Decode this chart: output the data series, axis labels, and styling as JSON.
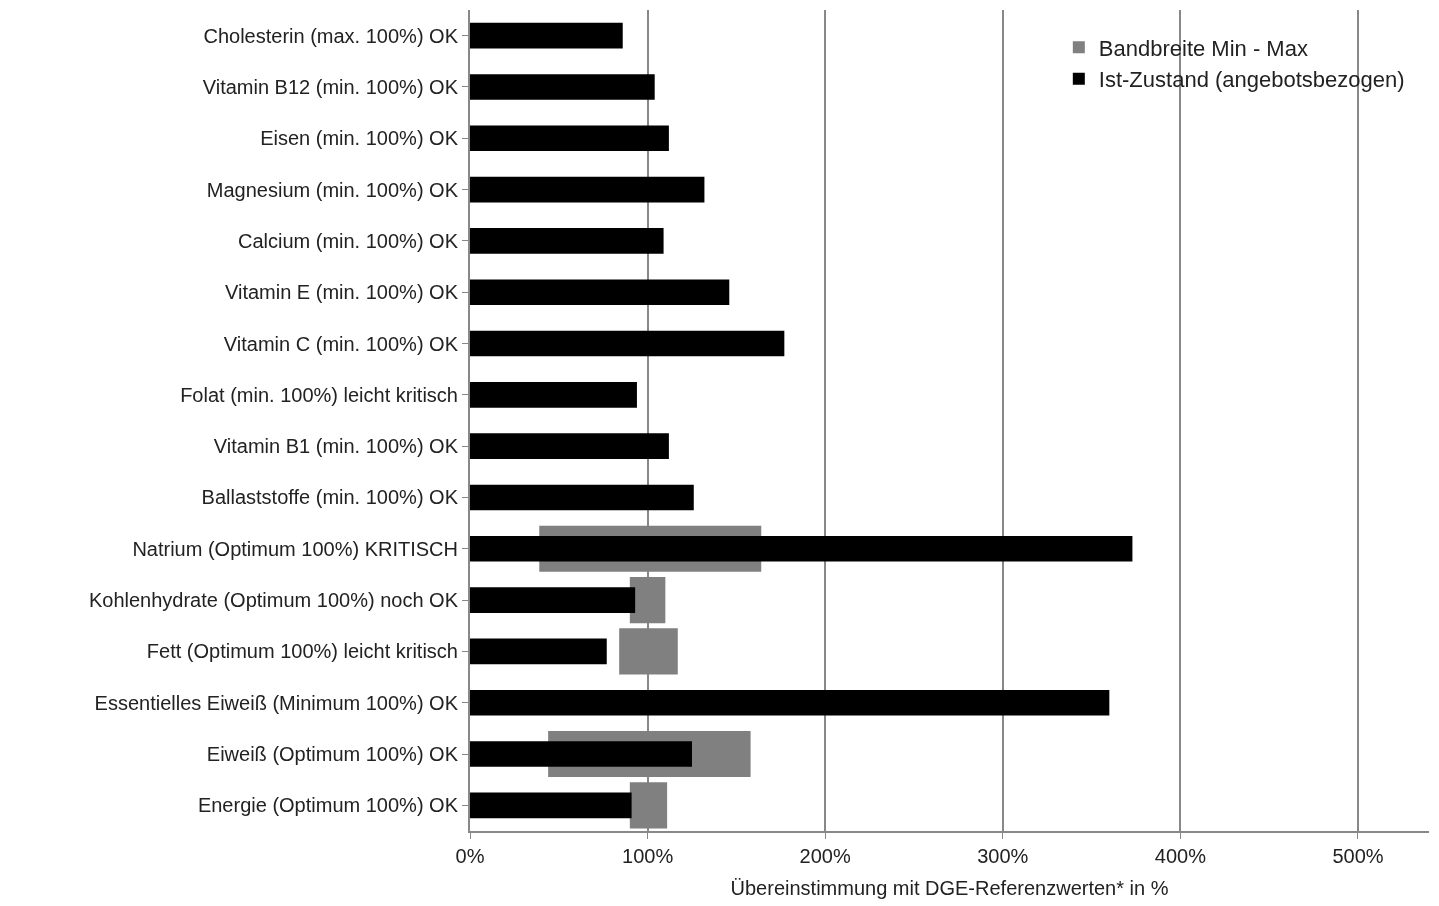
{
  "chart_data": {
    "type": "bar",
    "orientation": "horizontal",
    "xlabel": "Übereinstimmung mit DGE-Referenzwerten* in %",
    "categories": [
      "Cholesterin (max. 100%) OK",
      "Vitamin B12 (min. 100%) OK",
      "Eisen (min. 100%) OK",
      "Magnesium (min. 100%) OK",
      "Calcium (min. 100%) OK",
      "Vitamin E (min. 100%) OK",
      "Vitamin C (min. 100%) OK",
      "Folat (min. 100%) leicht kritisch",
      "Vitamin B1 (min. 100%) OK",
      "Ballaststoffe (min. 100%) OK",
      "Natrium (Optimum 100%) KRITISCH",
      "Kohlenhydrate (Optimum 100%) noch OK",
      "Fett (Optimum 100%) leicht kritisch",
      "Essentielles Eiweiß (Minimum 100%) OK",
      "Eiweiß (Optimum 100%) OK",
      "Energie (Optimum 100%) OK"
    ],
    "series": [
      {
        "name": "Bandbreite Min - Max",
        "color": "#808080",
        "values": [
          null,
          null,
          null,
          null,
          null,
          null,
          null,
          null,
          null,
          null,
          125,
          20,
          33,
          null,
          114,
          21
        ],
        "base": [
          null,
          null,
          null,
          null,
          null,
          null,
          null,
          null,
          null,
          null,
          39,
          90,
          84,
          null,
          44,
          90
        ]
      },
      {
        "name": "Ist-Zustand (angebotsbezogen)",
        "color": "#000000",
        "values": [
          86,
          104,
          112,
          132,
          109,
          146,
          177,
          94,
          112,
          126,
          373,
          93,
          77,
          360,
          125,
          91
        ]
      }
    ],
    "xlim": [
      0,
      540
    ],
    "xticks": [
      {
        "value": 0,
        "label": "0%"
      },
      {
        "value": 100,
        "label": "100%"
      },
      {
        "value": 200,
        "label": "200%"
      },
      {
        "value": 300,
        "label": "300%"
      },
      {
        "value": 400,
        "label": "400%"
      },
      {
        "value": 500,
        "label": "500%"
      }
    ],
    "grid": "x",
    "legend": "top right"
  }
}
